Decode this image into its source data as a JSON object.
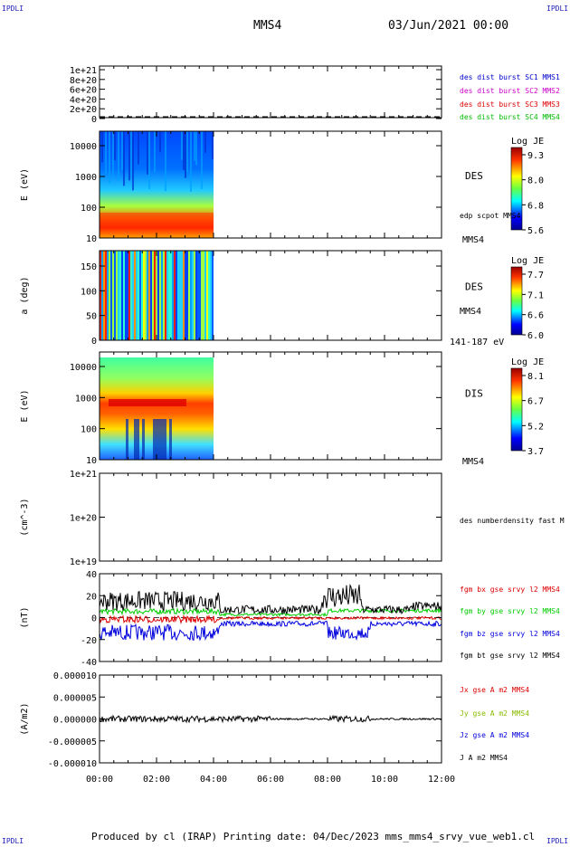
{
  "corner_labels": {
    "top_left": "IPDLI",
    "top_right": "IPDLI",
    "bottom_left": "IPDLI",
    "bottom_right": "IPDLI"
  },
  "header": {
    "spacecraft": "MMS4",
    "datetime": "03/Jun/2021 00:00"
  },
  "footer": {
    "text": "Produced by cl (IRAP)   Printing date: 04/Dec/2023   mms_mms4_srvy_vue_web1.cl"
  },
  "time_axis": {
    "ticks": [
      "00:00",
      "02:00",
      "04:00",
      "06:00",
      "08:00",
      "10:00",
      "12:00"
    ],
    "range_hours": [
      0,
      12
    ]
  },
  "chart_data": [
    {
      "type": "line",
      "ylabel": "",
      "ylim": [
        0,
        1.1e+21
      ],
      "y_ticks": [
        "1e+21",
        "8e+20",
        "6e+20",
        "4e+20",
        "2e+20",
        "0"
      ],
      "series": [
        {
          "name": "des dist burst SC1 MMS1",
          "color": "#0000cc"
        },
        {
          "name": "des dist burst SC2 MMS2",
          "color": "#cc00cc"
        },
        {
          "name": "des dist burst SC3 MMS3",
          "color": "#dd0000"
        },
        {
          "name": "des dist burst SC4 MMS4",
          "color": "#00bb00"
        }
      ]
    },
    {
      "type": "heatmap",
      "ylabel": "E (eV)",
      "y_ticks": [
        "10000",
        "1000",
        "100",
        "10"
      ],
      "label": "DES",
      "sublabel": "edp scpot MMS4",
      "bottom_label": "MMS4",
      "colorbar": {
        "title": "Log JE",
        "ticks": [
          "9.3",
          "8.0",
          "6.8",
          "5.6"
        ]
      },
      "data_extent_hours": [
        0,
        4.0
      ]
    },
    {
      "type": "heatmap",
      "ylabel": "a (deg)",
      "y_ticks": [
        "150",
        "100",
        "50",
        "0"
      ],
      "label": "DES",
      "sublabel": "MMS4",
      "bottom_label": "141-187 eV",
      "colorbar": {
        "title": "Log JE",
        "ticks": [
          "7.7",
          "7.1",
          "6.6",
          "6.0"
        ]
      },
      "data_extent_hours": [
        0,
        4.0
      ]
    },
    {
      "type": "heatmap",
      "ylabel": "E (eV)",
      "y_ticks": [
        "10000",
        "1000",
        "100",
        "10"
      ],
      "label": "DIS",
      "bottom_label": "MMS4",
      "colorbar": {
        "title": "Log JE",
        "ticks": [
          "8.1",
          "6.7",
          "5.2",
          "3.7"
        ]
      },
      "data_extent_hours": [
        0,
        4.0
      ]
    },
    {
      "type": "line",
      "ylabel": "(cm^-3)",
      "y_ticks": [
        "1e+21",
        "1e+20",
        "1e+19"
      ],
      "series": [
        {
          "name": "des numberdensity fast M",
          "color": "#000000"
        }
      ]
    },
    {
      "type": "line",
      "ylabel": "(nT)",
      "ylim": [
        -50,
        50
      ],
      "y_ticks": [
        "40",
        "20",
        "0",
        "-20",
        "-40"
      ],
      "series": [
        {
          "name": "fgm bx gse srvy l2 MMS4",
          "color": "#dd0000"
        },
        {
          "name": "fgm by gse srvy l2 MMS4",
          "color": "#00cc00"
        },
        {
          "name": "fgm bz gse srvy l2 MMS4",
          "color": "#0000dd"
        },
        {
          "name": "fgm bt gse srvy l2 MMS4",
          "color": "#000000"
        }
      ]
    },
    {
      "type": "line",
      "ylabel": "(A/m2)",
      "ylim": [
        -1e-05,
        1e-05
      ],
      "y_ticks": [
        "0.000010",
        "0.000005",
        "0.000000",
        "-0.000005",
        "-0.000010"
      ],
      "series": [
        {
          "name": "Jx gse A m2 MMS4",
          "color": "#dd0000"
        },
        {
          "name": "Jy gse A m2 MMS4",
          "color": "#88bb00"
        },
        {
          "name": "Jz gse A m2 MMS4",
          "color": "#0000dd"
        },
        {
          "name": "J A m2 MMS4",
          "color": "#000000"
        }
      ]
    }
  ]
}
